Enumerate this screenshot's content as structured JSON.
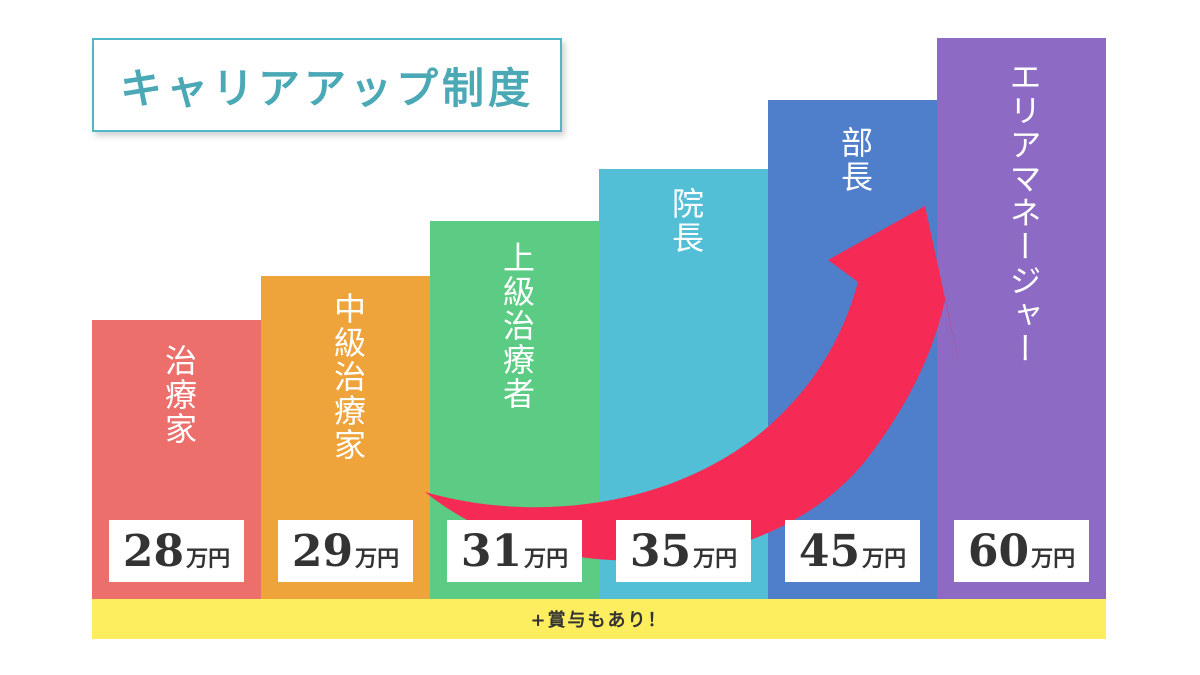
{
  "title": "キャリアアップ制度",
  "bonus_note": "+賞与もあり！",
  "salary_unit": "万円",
  "colors": {
    "title_border": "#4fb7c5",
    "title_text": "#4aa9b5",
    "arrow": "#f52a55",
    "bonus_bg": "#fcee5e"
  },
  "chart_data": {
    "type": "bar",
    "categories": [
      "治療家",
      "中級治療家",
      "上級治療者",
      "院長",
      "部長",
      "エリアマネージャー"
    ],
    "values": [
      28,
      29,
      31,
      35,
      45,
      60
    ],
    "salary_labels": [
      "28",
      "29",
      "31",
      "35",
      "45",
      "60"
    ],
    "unit": "万円",
    "colors": [
      "#ec6f6c",
      "#eea33b",
      "#5ccb83",
      "#52bfd6",
      "#4f7fcb",
      "#8d6bc4"
    ]
  }
}
